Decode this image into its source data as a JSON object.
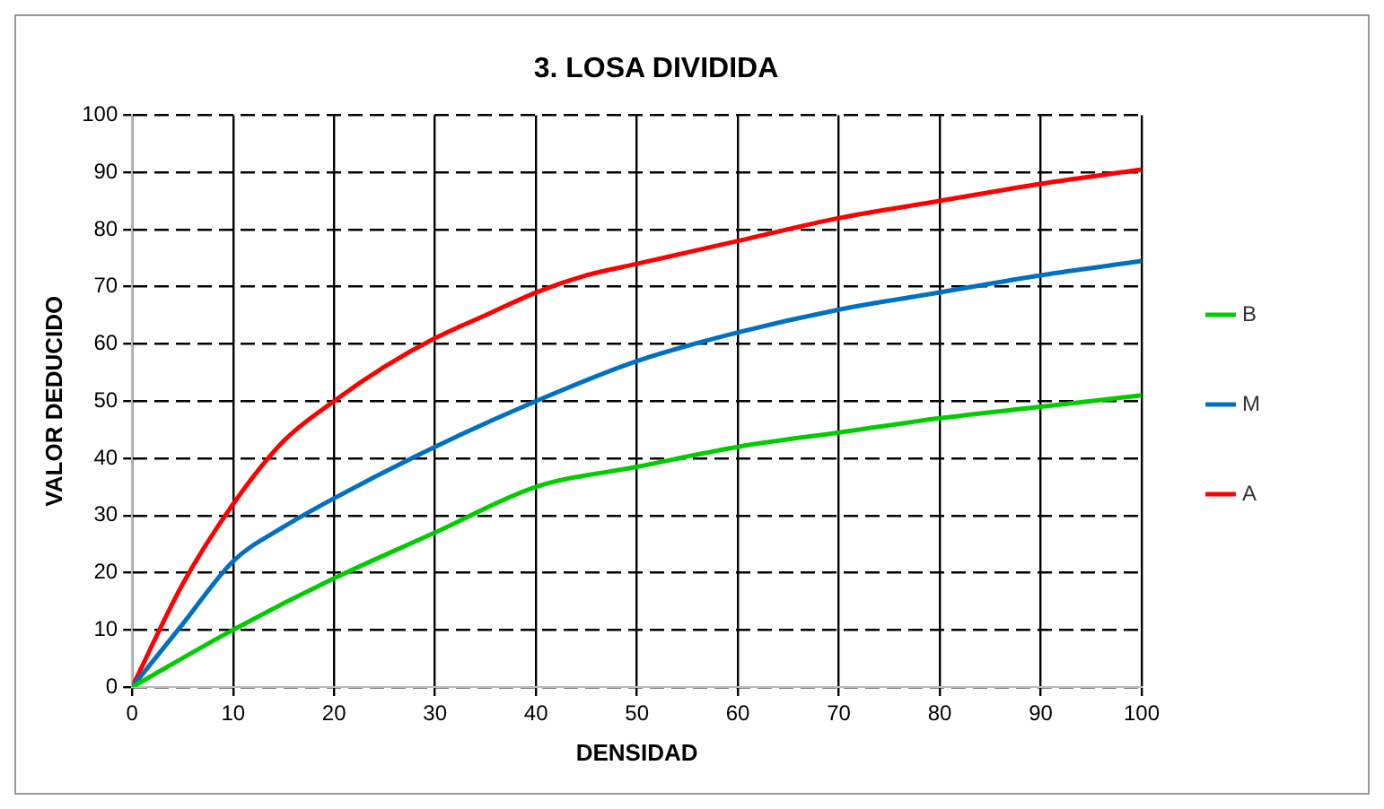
{
  "chart_data": {
    "type": "line",
    "title": "3. LOSA DIVIDIDA",
    "xlabel": "DENSIDAD",
    "ylabel": "VALOR DEDUCIDO",
    "xlim": [
      0,
      100
    ],
    "xticks": [
      0,
      10,
      20,
      30,
      40,
      50,
      60,
      70,
      80,
      90,
      100
    ],
    "ylim": [
      0,
      100
    ],
    "yticks": [
      0,
      10,
      20,
      30,
      40,
      50,
      60,
      70,
      80,
      90,
      100
    ],
    "grid": true,
    "legend": "right",
    "marker": "none",
    "line_style": "solid",
    "series": [
      {
        "name": "B",
        "color": "#00cc00",
        "x": [
          0,
          10,
          20,
          30,
          40,
          50,
          60,
          70,
          80,
          90,
          100
        ],
        "values": [
          0,
          10,
          19,
          27,
          35,
          38.5,
          42,
          44.5,
          47,
          49,
          51
        ]
      },
      {
        "name": "M",
        "color": "#0070c0",
        "x": [
          0,
          5,
          10,
          15,
          20,
          30,
          40,
          50,
          60,
          70,
          80,
          90,
          100
        ],
        "values": [
          0,
          11,
          22,
          28,
          33,
          42,
          50,
          57,
          62,
          66,
          69,
          72,
          74.5
        ]
      },
      {
        "name": "A",
        "color": "#ff0000",
        "x": [
          0,
          5,
          10,
          15,
          20,
          25,
          30,
          35,
          40,
          45,
          50,
          60,
          70,
          80,
          90,
          100
        ],
        "values": [
          0,
          18,
          32,
          43,
          50,
          56,
          61,
          65,
          69,
          72,
          74,
          78,
          82,
          85,
          88,
          90.5
        ]
      }
    ]
  }
}
